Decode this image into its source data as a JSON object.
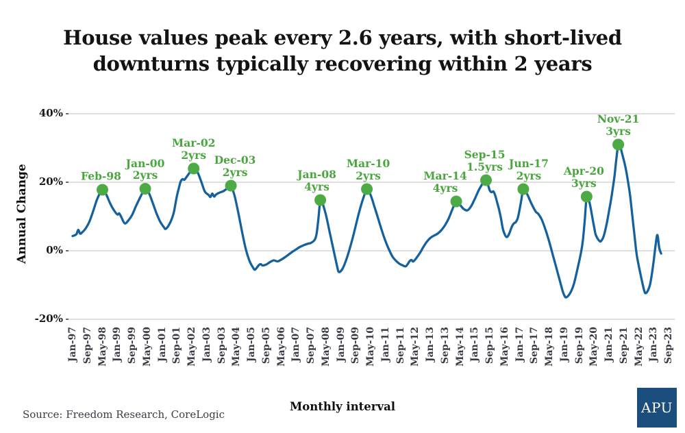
{
  "title": {
    "line1": "House values peak every 2.6 years, with short-lived",
    "line2": "downturns typically recovering within 2 years"
  },
  "source": "Source: Freedom Research, CoreLogic",
  "logo": {
    "text": "APU"
  },
  "colors": {
    "line": "#15619e",
    "marker": "#4cab44",
    "annotation": "#4aa53f",
    "grid": "#dcdcdc",
    "axis_tick": "#444444",
    "logo_bg": "#1c4e7d"
  },
  "chart_data": {
    "type": "line",
    "title": "House values peak every 2.6 years, with short-lived downturns typically recovering within 2 years",
    "xlabel": "Monthly interval",
    "ylabel": "Annual Change",
    "x_unit": "months since Jan-1997",
    "ylim": [
      -25,
      45
    ],
    "grid": "horizontal",
    "legend": "none",
    "y_ticks": [
      {
        "label": "40%",
        "value": 40
      },
      {
        "label": "20%",
        "value": 20
      },
      {
        "label": "0%",
        "value": 0
      },
      {
        "label": "-20%",
        "value": -20
      }
    ],
    "x_tick_labels": [
      "Jan-97",
      "Sep-97",
      "May-98",
      "Jan-99",
      "Sep-99",
      "May-00",
      "Jan-01",
      "Sep-01",
      "May-02",
      "Jan-03",
      "Sep-03",
      "May-04",
      "Jan-05",
      "Sep-05",
      "May-06",
      "Jan-07",
      "Sep-07",
      "May-08",
      "Jan-09",
      "Sep-09",
      "May-10",
      "Jan-11",
      "Sep-11",
      "May-12",
      "Jan-13",
      "Sep-13",
      "May-14",
      "Jan-15",
      "Sep-15",
      "May-16",
      "Jan-17",
      "Sep-17",
      "May-18",
      "Jan-19",
      "Sep-19",
      "May-20",
      "Jan-21",
      "Sep-21",
      "May-22",
      "Jan-23",
      "Sep-23"
    ],
    "x_tick_step_months": 8,
    "series": [
      {
        "name": "Annual change in house values (%)",
        "points": [
          [
            0,
            4.3
          ],
          [
            2,
            4.8
          ],
          [
            3,
            6.1
          ],
          [
            4,
            5.0
          ],
          [
            5,
            5.3
          ],
          [
            7,
            6.5
          ],
          [
            9,
            8.5
          ],
          [
            11,
            11.5
          ],
          [
            13,
            14.8
          ],
          [
            15,
            17.2
          ],
          [
            16,
            17.8
          ],
          [
            18,
            16.5
          ],
          [
            20,
            14.0
          ],
          [
            22,
            12.0
          ],
          [
            24,
            10.6
          ],
          [
            25,
            10.9
          ],
          [
            26,
            10.0
          ],
          [
            28,
            8.0
          ],
          [
            30,
            8.9
          ],
          [
            32,
            10.5
          ],
          [
            34,
            13.0
          ],
          [
            36,
            15.3
          ],
          [
            38,
            17.4
          ],
          [
            39,
            18.1
          ],
          [
            41,
            16.8
          ],
          [
            43,
            14.0
          ],
          [
            45,
            11.0
          ],
          [
            47,
            8.5
          ],
          [
            49,
            6.9
          ],
          [
            50,
            6.4
          ],
          [
            52,
            7.8
          ],
          [
            54,
            10.5
          ],
          [
            55,
            13.0
          ],
          [
            56,
            16.0
          ],
          [
            57,
            18.2
          ],
          [
            58,
            20.2
          ],
          [
            59,
            20.9
          ],
          [
            60,
            20.7
          ],
          [
            61,
            21.4
          ],
          [
            63,
            22.9
          ],
          [
            65,
            24.0
          ],
          [
            67,
            23.0
          ],
          [
            69,
            20.3
          ],
          [
            71,
            17.3
          ],
          [
            73,
            16.3
          ],
          [
            74,
            15.7
          ],
          [
            75,
            16.7
          ],
          [
            76,
            15.8
          ],
          [
            77,
            16.4
          ],
          [
            79,
            17.0
          ],
          [
            81,
            17.4
          ],
          [
            83,
            18.2
          ],
          [
            85,
            19.0
          ],
          [
            87,
            16.0
          ],
          [
            89,
            11.0
          ],
          [
            91,
            5.5
          ],
          [
            93,
            0.5
          ],
          [
            95,
            -3.0
          ],
          [
            97,
            -5.0
          ],
          [
            98,
            -5.5
          ],
          [
            100,
            -4.2
          ],
          [
            101,
            -3.9
          ],
          [
            102,
            -4.3
          ],
          [
            104,
            -4.0
          ],
          [
            106,
            -3.3
          ],
          [
            108,
            -2.8
          ],
          [
            110,
            -3.1
          ],
          [
            112,
            -2.6
          ],
          [
            114,
            -1.9
          ],
          [
            116,
            -1.1
          ],
          [
            118,
            -0.3
          ],
          [
            120,
            0.4
          ],
          [
            122,
            1.1
          ],
          [
            124,
            1.6
          ],
          [
            126,
            2.0
          ],
          [
            128,
            2.3
          ],
          [
            130,
            3.2
          ],
          [
            131,
            5.0
          ],
          [
            132,
            9.5
          ],
          [
            133,
            14.8
          ],
          [
            134,
            14.2
          ],
          [
            136,
            10.5
          ],
          [
            138,
            5.5
          ],
          [
            140,
            0.5
          ],
          [
            141,
            -2.0
          ],
          [
            142,
            -4.5
          ],
          [
            143,
            -6.2
          ],
          [
            145,
            -5.2
          ],
          [
            147,
            -2.5
          ],
          [
            149,
            1.0
          ],
          [
            151,
            5.0
          ],
          [
            153,
            9.5
          ],
          [
            155,
            13.5
          ],
          [
            157,
            16.8
          ],
          [
            158,
            18.0
          ],
          [
            160,
            16.3
          ],
          [
            162,
            13.0
          ],
          [
            164,
            9.5
          ],
          [
            166,
            6.0
          ],
          [
            168,
            2.8
          ],
          [
            170,
            0.2
          ],
          [
            172,
            -1.9
          ],
          [
            175,
            -3.6
          ],
          [
            177,
            -4.2
          ],
          [
            179,
            -4.5
          ],
          [
            181,
            -3.0
          ],
          [
            182,
            -2.7
          ],
          [
            183,
            -3.1
          ],
          [
            185,
            -1.8
          ],
          [
            187,
            -0.2
          ],
          [
            188,
            0.8
          ],
          [
            190,
            2.5
          ],
          [
            192,
            3.7
          ],
          [
            194,
            4.4
          ],
          [
            196,
            5.0
          ],
          [
            198,
            6.0
          ],
          [
            200,
            7.5
          ],
          [
            202,
            9.5
          ],
          [
            204,
            12.2
          ],
          [
            206,
            14.4
          ],
          [
            208,
            13.4
          ],
          [
            210,
            12.2
          ],
          [
            212,
            11.8
          ],
          [
            214,
            13.0
          ],
          [
            216,
            15.2
          ],
          [
            218,
            17.6
          ],
          [
            220,
            19.5
          ],
          [
            221,
            20.2
          ],
          [
            222,
            20.6
          ],
          [
            223,
            19.3
          ],
          [
            224,
            17.6
          ],
          [
            225,
            17.1
          ],
          [
            226,
            17.3
          ],
          [
            227,
            16.0
          ],
          [
            228,
            14.0
          ],
          [
            229,
            12.0
          ],
          [
            230,
            9.5
          ],
          [
            231,
            6.5
          ],
          [
            232,
            4.8
          ],
          [
            233,
            4.0
          ],
          [
            234,
            4.5
          ],
          [
            235,
            5.8
          ],
          [
            236,
            7.2
          ],
          [
            237,
            8.0
          ],
          [
            238,
            8.4
          ],
          [
            239,
            9.5
          ],
          [
            240,
            12.0
          ],
          [
            241,
            15.0
          ],
          [
            242,
            18.0
          ],
          [
            244,
            16.6
          ],
          [
            246,
            14.2
          ],
          [
            248,
            12.0
          ],
          [
            249,
            11.2
          ],
          [
            250,
            10.8
          ],
          [
            252,
            9.0
          ],
          [
            254,
            6.0
          ],
          [
            256,
            2.5
          ],
          [
            258,
            -1.5
          ],
          [
            260,
            -5.5
          ],
          [
            261,
            -7.5
          ],
          [
            263,
            -11.5
          ],
          [
            264,
            -13.0
          ],
          [
            265,
            -13.6
          ],
          [
            267,
            -12.5
          ],
          [
            269,
            -10.0
          ],
          [
            271,
            -5.5
          ],
          [
            273,
            -0.5
          ],
          [
            274,
            3.0
          ],
          [
            275,
            9.0
          ],
          [
            276,
            15.8
          ],
          [
            277,
            15.2
          ],
          [
            278,
            13.0
          ],
          [
            279,
            10.0
          ],
          [
            280,
            7.0
          ],
          [
            281,
            4.5
          ],
          [
            283,
            2.8
          ],
          [
            284,
            3.0
          ],
          [
            285,
            4.0
          ],
          [
            286,
            6.0
          ],
          [
            287,
            8.5
          ],
          [
            288,
            11.5
          ],
          [
            289,
            14.5
          ],
          [
            290,
            18.0
          ],
          [
            291,
            22.0
          ],
          [
            292,
            27.0
          ],
          [
            293,
            31.0
          ],
          [
            294,
            30.5
          ],
          [
            295,
            28.5
          ],
          [
            297,
            24.0
          ],
          [
            299,
            17.5
          ],
          [
            300,
            13.0
          ],
          [
            301,
            8.0
          ],
          [
            302,
            3.0
          ],
          [
            303,
            -1.5
          ],
          [
            305,
            -7.0
          ],
          [
            307,
            -11.8
          ],
          [
            308,
            -12.3
          ],
          [
            309,
            -11.5
          ],
          [
            310,
            -10.0
          ],
          [
            311,
            -7.0
          ],
          [
            312,
            -3.0
          ],
          [
            313,
            1.5
          ],
          [
            314,
            4.6
          ],
          [
            315,
            0.8
          ],
          [
            316,
            -0.8
          ]
        ]
      }
    ],
    "peaks": [
      {
        "date": "Feb-98",
        "interval": "",
        "value": 17.8,
        "m": 16,
        "dx": -2
      },
      {
        "date": "Jan-00",
        "interval": "2yrs",
        "value": 18.1,
        "m": 39,
        "dx": 0
      },
      {
        "date": "Mar-02",
        "interval": "2yrs",
        "value": 24.0,
        "m": 65,
        "dx": 0
      },
      {
        "date": "Dec-03",
        "interval": "2yrs",
        "value": 19.0,
        "m": 85,
        "dx": 6
      },
      {
        "date": "Jan-08",
        "interval": "4yrs",
        "value": 14.8,
        "m": 133,
        "dx": -5
      },
      {
        "date": "Mar-10",
        "interval": "2yrs",
        "value": 18.0,
        "m": 158,
        "dx": 2
      },
      {
        "date": "Mar-14",
        "interval": "4yrs",
        "value": 14.4,
        "m": 206,
        "dx": -16
      },
      {
        "date": "Sep-15",
        "interval": "1.5yrs",
        "value": 20.6,
        "m": 222,
        "dx": -2
      },
      {
        "date": "Jun-17",
        "interval": "2yrs",
        "value": 18.0,
        "m": 242,
        "dx": 8
      },
      {
        "date": "Apr-20",
        "interval": "3yrs",
        "value": 15.8,
        "m": 276,
        "dx": -4
      },
      {
        "date": "Nov-21",
        "interval": "3yrs",
        "value": 31.0,
        "m": 293,
        "dx": 0
      }
    ]
  }
}
